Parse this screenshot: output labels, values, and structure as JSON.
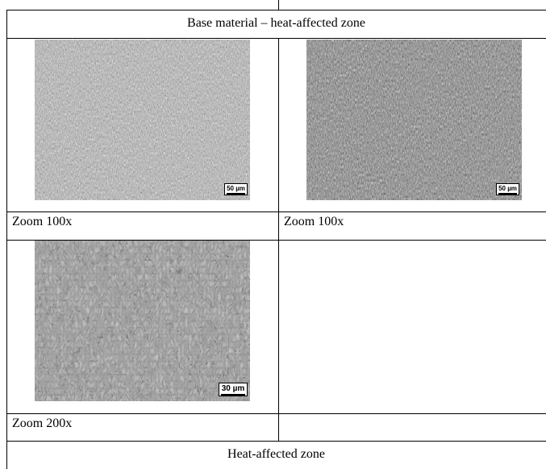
{
  "table": {
    "header_top": "Base material – heat-affected zone",
    "header_bottom": "Heat-affected zone",
    "cells": [
      {
        "caption": "Zoom 100x",
        "scale_label": "50 µm",
        "texture": "fine-banded"
      },
      {
        "caption": "Zoom 100x",
        "scale_label": "50 µm",
        "texture": "fine-banded-dark"
      },
      {
        "caption": "Zoom 200x",
        "scale_label": "30 µm",
        "texture": "grains"
      }
    ]
  }
}
